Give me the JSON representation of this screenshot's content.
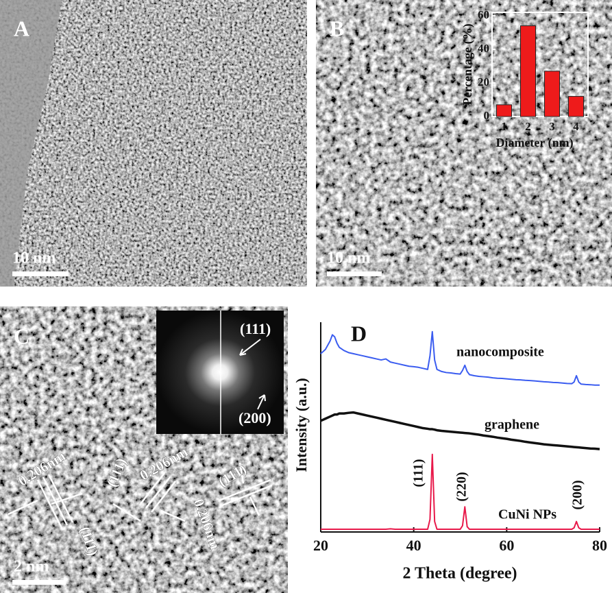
{
  "panels": {
    "A": {
      "label": "A",
      "scale_bar": "10 nm"
    },
    "B": {
      "label": "B",
      "scale_bar": "10 nm"
    },
    "C": {
      "label": "C",
      "scale_bar": "2 nm",
      "fft_labels": [
        "(111)",
        "(200)"
      ],
      "annotations": [
        "0.206nm",
        "(111)",
        "(111)",
        "0.206nm",
        "0.206nm",
        "(111)"
      ]
    }
  },
  "chart_data": [
    {
      "type": "bar",
      "xlabel": "Diameter (nm)",
      "ylabel": "Percentage (%)",
      "categories": [
        "1",
        "2",
        "3",
        "4"
      ],
      "values": [
        7,
        54,
        27,
        12
      ],
      "color": "#ee1b1b",
      "ylim": [
        0,
        62
      ],
      "yticks": [
        0,
        20,
        40,
        60
      ]
    },
    {
      "type": "line",
      "title": "D",
      "xlabel": "2 Theta (degree)",
      "ylabel": "Intensity (a.u.)",
      "xlim": [
        20,
        80
      ],
      "xticks": [
        20,
        40,
        60,
        80
      ],
      "ylim": [
        0,
        100
      ],
      "annotations": [
        "(111)",
        "(220)",
        "(200)"
      ],
      "x": [
        20,
        21,
        22,
        22.5,
        23,
        23.5,
        24,
        25,
        26,
        27,
        28,
        29,
        30,
        31,
        32,
        33,
        34,
        35,
        36,
        37,
        38,
        39,
        40,
        41,
        42,
        43,
        43.5,
        44,
        44.5,
        45,
        46,
        47,
        48,
        49,
        50,
        50.5,
        51,
        51.5,
        52,
        53,
        54,
        55,
        56,
        57,
        58,
        59,
        60,
        61,
        62,
        63,
        64,
        65,
        66,
        67,
        68,
        69,
        70,
        71,
        72,
        73,
        74,
        74.5,
        75,
        75.5,
        76,
        77,
        78,
        79,
        80
      ],
      "series": [
        {
          "name": "nanocomposite",
          "color": "#3a5cf0",
          "values": [
            85,
            87,
            91,
            94,
            93,
            90,
            88,
            86.5,
            85.5,
            85,
            84.5,
            84,
            83.5,
            83,
            82.5,
            82,
            82.5,
            81,
            80.5,
            80,
            79.5,
            79,
            78.8,
            78.5,
            78,
            77.5,
            84,
            95.5,
            82,
            77.5,
            76.5,
            76,
            75.8,
            75.5,
            75.3,
            77,
            79.5,
            76.5,
            75,
            74.5,
            74.2,
            74,
            73.8,
            73.5,
            73.3,
            73.2,
            73,
            72.8,
            72.6,
            72.5,
            72.3,
            72.2,
            72,
            71.8,
            71.6,
            71.5,
            71.3,
            71.2,
            71,
            70.8,
            70.7,
            71.5,
            74.5,
            71.5,
            70.5,
            70.3,
            70.2,
            70,
            70
          ]
        },
        {
          "name": "graphene",
          "color": "#111111",
          "values": [
            53,
            54,
            55,
            55.5,
            56,
            56,
            56.5,
            56.5,
            56.8,
            57,
            56.5,
            56,
            55.5,
            55,
            54.5,
            54,
            53.5,
            53,
            52.5,
            52,
            51.5,
            51,
            50.5,
            50,
            49.5,
            49.2,
            49,
            49,
            48.8,
            48.5,
            48.2,
            48,
            47.8,
            47.6,
            47.4,
            47.3,
            47.2,
            47.1,
            47,
            46.7,
            46.4,
            46,
            45.7,
            45.4,
            45,
            44.7,
            44.4,
            44,
            43.7,
            43.4,
            43,
            42.7,
            42.4,
            42.1,
            41.8,
            41.6,
            41.4,
            41.2,
            41,
            40.8,
            40.6,
            40.5,
            40.4,
            40.3,
            40.2,
            40,
            39.8,
            39.7,
            39.5
          ]
        },
        {
          "name": "CuNi NPs",
          "color": "#e8194a",
          "values": [
            1.3,
            1.3,
            1.3,
            1.3,
            1.3,
            1.3,
            1.3,
            1.3,
            1.3,
            1.3,
            1.3,
            1.3,
            1.3,
            1.3,
            1.3,
            1.3,
            1.3,
            1.5,
            1.3,
            1.3,
            1.3,
            1.3,
            1.3,
            1.3,
            1.3,
            1.3,
            6,
            37,
            5,
            1.3,
            1.3,
            1.3,
            1.3,
            1.3,
            1.3,
            3,
            12,
            2.5,
            1.3,
            1.3,
            1.3,
            1.3,
            1.3,
            1.3,
            1.3,
            1.3,
            1.3,
            1.3,
            1.3,
            1.3,
            1.3,
            1.3,
            1.3,
            1.3,
            1.3,
            1.3,
            1.3,
            1.3,
            1.3,
            1.3,
            1.3,
            2,
            5,
            2,
            1.3,
            1.3,
            1.3,
            1.3,
            1.3
          ]
        }
      ]
    }
  ]
}
